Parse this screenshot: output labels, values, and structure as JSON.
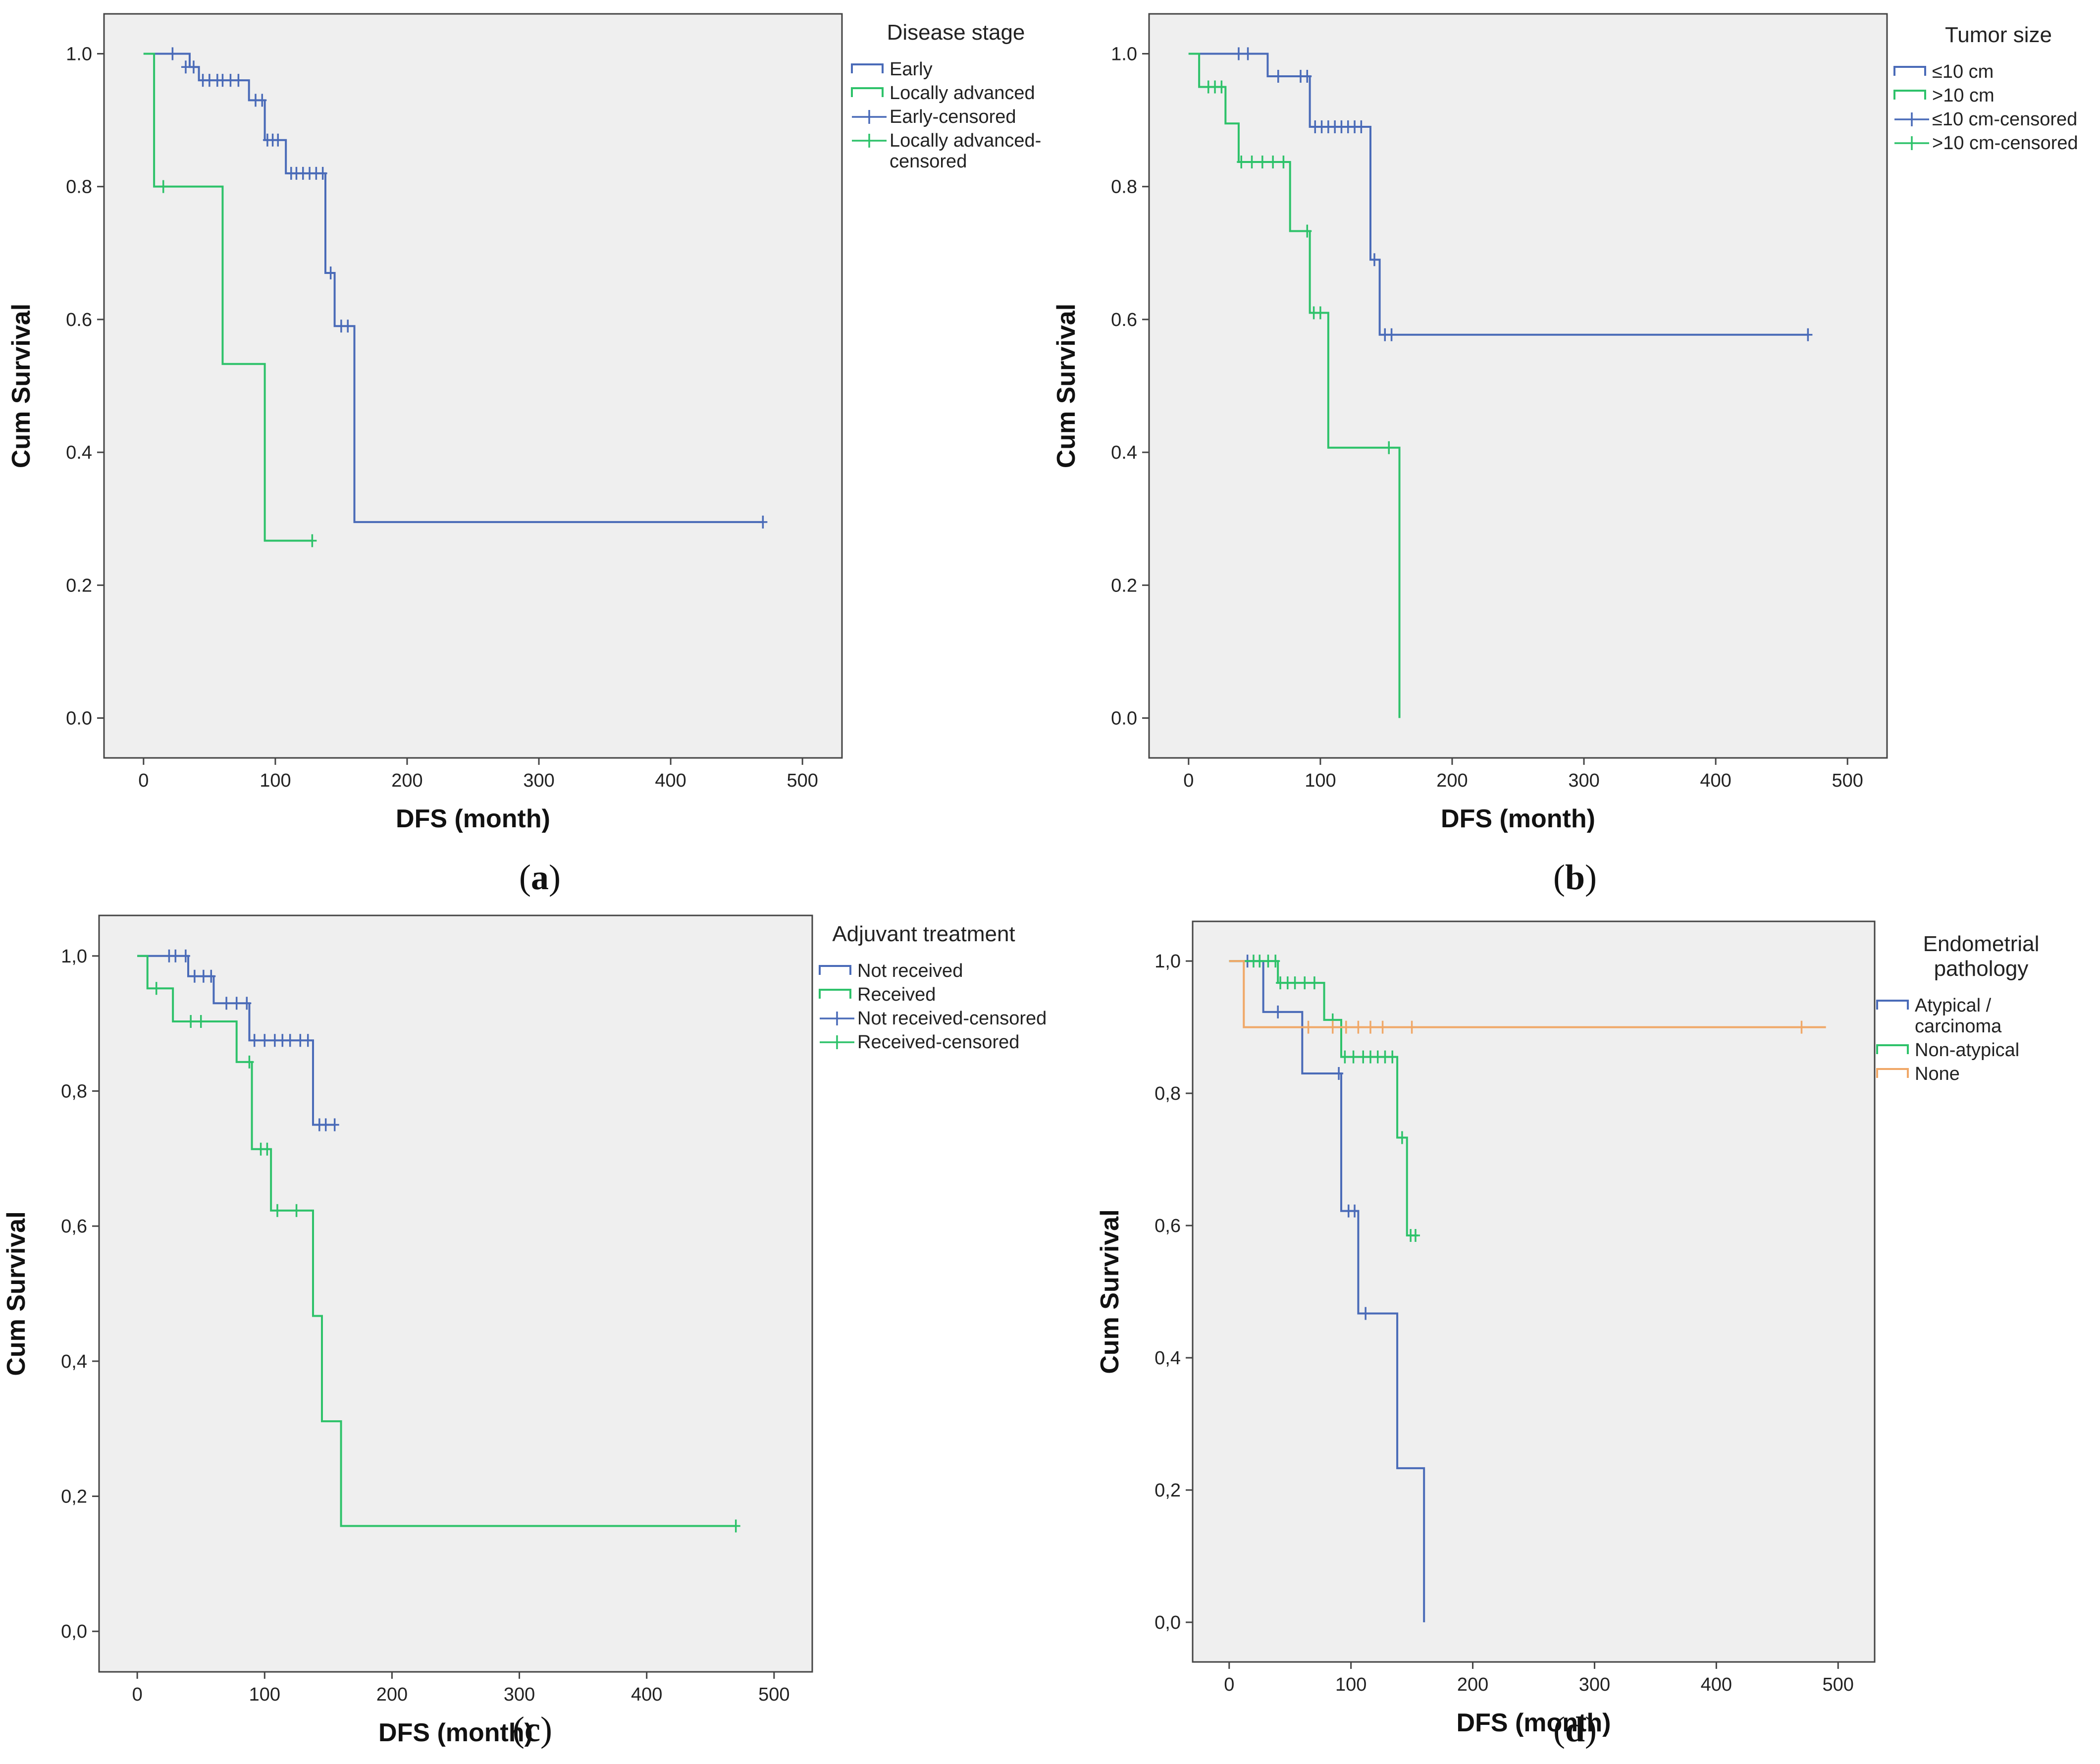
{
  "colors": {
    "plot_background": "#efefef",
    "blue": "#4a6bb8",
    "green": "#2ec26a",
    "orange": "#f0a868",
    "frame": "#444444"
  },
  "chart_data": [
    {
      "type": "line",
      "caption_letter": "a",
      "xlabel": "DFS (month)",
      "ylabel": "Cum Survival",
      "xlim": [
        -30,
        530
      ],
      "ylim": [
        -0.06,
        1.06
      ],
      "xticks": [
        "0",
        "100",
        "200",
        "300",
        "400",
        "500"
      ],
      "xtick_values": [
        0,
        100,
        200,
        300,
        400,
        500
      ],
      "yticks": [
        "0.0",
        "0.2",
        "0.4",
        "0.6",
        "0.8",
        "1.0"
      ],
      "ytick_values": [
        0,
        0.2,
        0.4,
        0.6,
        0.8,
        1.0
      ],
      "legend_title": "Disease stage",
      "legend": [
        {
          "label": "Early",
          "kind": "line",
          "color": "blue"
        },
        {
          "label": "Locally advanced",
          "kind": "line",
          "color": "green"
        },
        {
          "label": "Early-censored",
          "kind": "censor",
          "color": "blue"
        },
        {
          "label": "Locally advanced-censored",
          "kind": "censor",
          "color": "green"
        }
      ],
      "series": [
        {
          "color": "blue",
          "steps": [
            [
              0,
              1.0
            ],
            [
              35,
              0.98
            ],
            [
              42,
              0.96
            ],
            [
              80,
              0.93
            ],
            [
              92,
              0.87
            ],
            [
              108,
              0.82
            ],
            [
              138,
              0.67
            ],
            [
              145,
              0.59
            ],
            [
              160,
              0.295
            ],
            [
              470,
              0.295
            ]
          ],
          "censored": [
            [
              22,
              1.0
            ],
            [
              32,
              0.98
            ],
            [
              38,
              0.98
            ],
            [
              45,
              0.96
            ],
            [
              50,
              0.96
            ],
            [
              56,
              0.96
            ],
            [
              60,
              0.96
            ],
            [
              66,
              0.96
            ],
            [
              72,
              0.96
            ],
            [
              85,
              0.93
            ],
            [
              90,
              0.93
            ],
            [
              94,
              0.87
            ],
            [
              98,
              0.87
            ],
            [
              102,
              0.87
            ],
            [
              112,
              0.82
            ],
            [
              116,
              0.82
            ],
            [
              121,
              0.82
            ],
            [
              126,
              0.82
            ],
            [
              131,
              0.82
            ],
            [
              136,
              0.82
            ],
            [
              142,
              0.67
            ],
            [
              150,
              0.59
            ],
            [
              155,
              0.59
            ],
            [
              470,
              0.295
            ]
          ]
        },
        {
          "color": "green",
          "steps": [
            [
              0,
              1.0
            ],
            [
              8,
              0.8
            ],
            [
              60,
              0.533
            ],
            [
              92,
              0.267
            ],
            [
              128,
              0.267
            ]
          ],
          "censored": [
            [
              15,
              0.8
            ],
            [
              128,
              0.267
            ]
          ]
        }
      ]
    },
    {
      "type": "line",
      "caption_letter": "b",
      "xlabel": "DFS (month)",
      "ylabel": "Cum Survival",
      "xlim": [
        -30,
        530
      ],
      "ylim": [
        -0.06,
        1.06
      ],
      "xticks": [
        "0",
        "100",
        "200",
        "300",
        "400",
        "500"
      ],
      "xtick_values": [
        0,
        100,
        200,
        300,
        400,
        500
      ],
      "yticks": [
        "0.0",
        "0.2",
        "0.4",
        "0.6",
        "0.8",
        "1.0"
      ],
      "ytick_values": [
        0,
        0.2,
        0.4,
        0.6,
        0.8,
        1.0
      ],
      "legend_title": "Tumor size",
      "legend": [
        {
          "label": "≤10 cm",
          "kind": "line",
          "color": "blue"
        },
        {
          "label": ">10 cm",
          "kind": "line",
          "color": "green"
        },
        {
          "label": "≤10 cm-censored",
          "kind": "censor",
          "color": "blue"
        },
        {
          "label": ">10 cm-censored",
          "kind": "censor",
          "color": "green"
        }
      ],
      "series": [
        {
          "color": "blue",
          "steps": [
            [
              0,
              1.0
            ],
            [
              60,
              0.966
            ],
            [
              92,
              0.89
            ],
            [
              138,
              0.69
            ],
            [
              145,
              0.577
            ],
            [
              470,
              0.577
            ]
          ],
          "censored": [
            [
              38,
              1.0
            ],
            [
              45,
              1.0
            ],
            [
              68,
              0.966
            ],
            [
              85,
              0.966
            ],
            [
              90,
              0.966
            ],
            [
              96,
              0.89
            ],
            [
              101,
              0.89
            ],
            [
              106,
              0.89
            ],
            [
              111,
              0.89
            ],
            [
              116,
              0.89
            ],
            [
              121,
              0.89
            ],
            [
              126,
              0.89
            ],
            [
              131,
              0.89
            ],
            [
              141,
              0.69
            ],
            [
              149,
              0.577
            ],
            [
              154,
              0.577
            ],
            [
              470,
              0.577
            ]
          ]
        },
        {
          "color": "green",
          "steps": [
            [
              0,
              1.0
            ],
            [
              8,
              0.95
            ],
            [
              28,
              0.895
            ],
            [
              38,
              0.837
            ],
            [
              77,
              0.733
            ],
            [
              92,
              0.61
            ],
            [
              106,
              0.407
            ],
            [
              160,
              0.0
            ]
          ],
          "censored": [
            [
              15,
              0.95
            ],
            [
              20,
              0.95
            ],
            [
              25,
              0.95
            ],
            [
              40,
              0.837
            ],
            [
              48,
              0.837
            ],
            [
              56,
              0.837
            ],
            [
              64,
              0.837
            ],
            [
              72,
              0.837
            ],
            [
              90,
              0.733
            ],
            [
              95,
              0.61
            ],
            [
              100,
              0.61
            ],
            [
              152,
              0.407
            ]
          ]
        }
      ]
    },
    {
      "type": "line",
      "caption_letter": "c",
      "xlabel": "DFS (month)",
      "ylabel": "Cum Survival",
      "xlim": [
        -30,
        530
      ],
      "ylim": [
        -0.06,
        1.06
      ],
      "xticks": [
        "0",
        "100",
        "200",
        "300",
        "400",
        "500"
      ],
      "xtick_values": [
        0,
        100,
        200,
        300,
        400,
        500
      ],
      "yticks": [
        "0,0",
        "0,2",
        "0,4",
        "0,6",
        "0,8",
        "1,0"
      ],
      "ytick_values": [
        0,
        0.2,
        0.4,
        0.6,
        0.8,
        1.0
      ],
      "legend_title": "Adjuvant treatment",
      "legend": [
        {
          "label": "Not received",
          "kind": "line",
          "color": "blue"
        },
        {
          "label": "Received",
          "kind": "line",
          "color": "green"
        },
        {
          "label": "Not received-censored",
          "kind": "censor",
          "color": "blue"
        },
        {
          "label": "Received-censored",
          "kind": "censor",
          "color": "green"
        }
      ],
      "series": [
        {
          "color": "blue",
          "steps": [
            [
              0,
              1.0
            ],
            [
              40,
              0.97
            ],
            [
              60,
              0.93
            ],
            [
              88,
              0.875
            ],
            [
              138,
              0.75
            ],
            [
              155,
              0.75
            ]
          ],
          "censored": [
            [
              25,
              1.0
            ],
            [
              30,
              1.0
            ],
            [
              38,
              1.0
            ],
            [
              45,
              0.97
            ],
            [
              52,
              0.97
            ],
            [
              58,
              0.97
            ],
            [
              70,
              0.93
            ],
            [
              78,
              0.93
            ],
            [
              86,
              0.93
            ],
            [
              92,
              0.875
            ],
            [
              100,
              0.875
            ],
            [
              108,
              0.875
            ],
            [
              114,
              0.875
            ],
            [
              120,
              0.875
            ],
            [
              128,
              0.875
            ],
            [
              134,
              0.875
            ],
            [
              143,
              0.75
            ],
            [
              148,
              0.75
            ],
            [
              155,
              0.75
            ]
          ]
        },
        {
          "color": "green",
          "steps": [
            [
              0,
              1.0
            ],
            [
              8,
              0.952
            ],
            [
              28,
              0.903
            ],
            [
              78,
              0.843
            ],
            [
              90,
              0.714
            ],
            [
              105,
              0.623
            ],
            [
              138,
              0.467
            ],
            [
              145,
              0.311
            ],
            [
              160,
              0.156
            ],
            [
              470,
              0.156
            ]
          ],
          "censored": [
            [
              15,
              0.952
            ],
            [
              42,
              0.903
            ],
            [
              50,
              0.903
            ],
            [
              88,
              0.843
            ],
            [
              97,
              0.714
            ],
            [
              102,
              0.714
            ],
            [
              110,
              0.623
            ],
            [
              125,
              0.623
            ],
            [
              470,
              0.156
            ]
          ]
        }
      ]
    },
    {
      "type": "line",
      "caption_letter": "d",
      "xlabel": "DFS (month)",
      "ylabel": "Cum Survival",
      "xlim": [
        -30,
        530
      ],
      "ylim": [
        -0.06,
        1.06
      ],
      "xticks": [
        "0",
        "100",
        "200",
        "300",
        "400",
        "500"
      ],
      "xtick_values": [
        0,
        100,
        200,
        300,
        400,
        500
      ],
      "yticks": [
        "0,0",
        "0,2",
        "0,4",
        "0,6",
        "0,8",
        "1,0"
      ],
      "ytick_values": [
        0,
        0.2,
        0.4,
        0.6,
        0.8,
        1.0
      ],
      "legend_title": "Endometrial pathology",
      "legend_title_lines": [
        "Endometrial",
        "pathology"
      ],
      "legend": [
        {
          "label": "Atypical / carcinoma",
          "lines": [
            "Atypical /",
            "carcinoma"
          ],
          "kind": "line",
          "color": "blue"
        },
        {
          "label": "Non-atypical",
          "lines": [
            "Non-atypical"
          ],
          "kind": "line",
          "color": "green"
        },
        {
          "label": "None",
          "lines": [
            "None"
          ],
          "kind": "line",
          "color": "orange"
        }
      ],
      "series": [
        {
          "color": "blue",
          "steps": [
            [
              0,
              1.0
            ],
            [
              28,
              0.923
            ],
            [
              60,
              0.83
            ],
            [
              92,
              0.622
            ],
            [
              106,
              0.467
            ],
            [
              138,
              0.233
            ],
            [
              160,
              0.0
            ]
          ],
          "censored": [
            [
              15,
              1.0
            ],
            [
              40,
              0.923
            ],
            [
              90,
              0.83
            ],
            [
              98,
              0.622
            ],
            [
              103,
              0.622
            ],
            [
              112,
              0.467
            ]
          ]
        },
        {
          "color": "green",
          "steps": [
            [
              0,
              1.0
            ],
            [
              40,
              0.967
            ],
            [
              78,
              0.911
            ],
            [
              92,
              0.855
            ],
            [
              138,
              0.733
            ],
            [
              146,
              0.585
            ],
            [
              155,
              0.585
            ]
          ],
          "censored": [
            [
              20,
              1.0
            ],
            [
              25,
              1.0
            ],
            [
              32,
              1.0
            ],
            [
              38,
              1.0
            ],
            [
              42,
              0.967
            ],
            [
              48,
              0.967
            ],
            [
              54,
              0.967
            ],
            [
              62,
              0.967
            ],
            [
              70,
              0.967
            ],
            [
              85,
              0.911
            ],
            [
              95,
              0.855
            ],
            [
              102,
              0.855
            ],
            [
              110,
              0.855
            ],
            [
              116,
              0.855
            ],
            [
              122,
              0.855
            ],
            [
              128,
              0.855
            ],
            [
              134,
              0.855
            ],
            [
              142,
              0.733
            ],
            [
              149,
              0.585
            ],
            [
              153,
              0.585
            ]
          ]
        },
        {
          "color": "orange",
          "steps": [
            [
              0,
              1.0
            ],
            [
              12,
              0.9
            ],
            [
              490,
              0.9
            ]
          ],
          "censored": [
            [
              65,
              0.9
            ],
            [
              85,
              0.9
            ],
            [
              96,
              0.9
            ],
            [
              106,
              0.9
            ],
            [
              116,
              0.9
            ],
            [
              126,
              0.9
            ],
            [
              150,
              0.9
            ],
            [
              470,
              0.9
            ]
          ]
        }
      ]
    }
  ]
}
